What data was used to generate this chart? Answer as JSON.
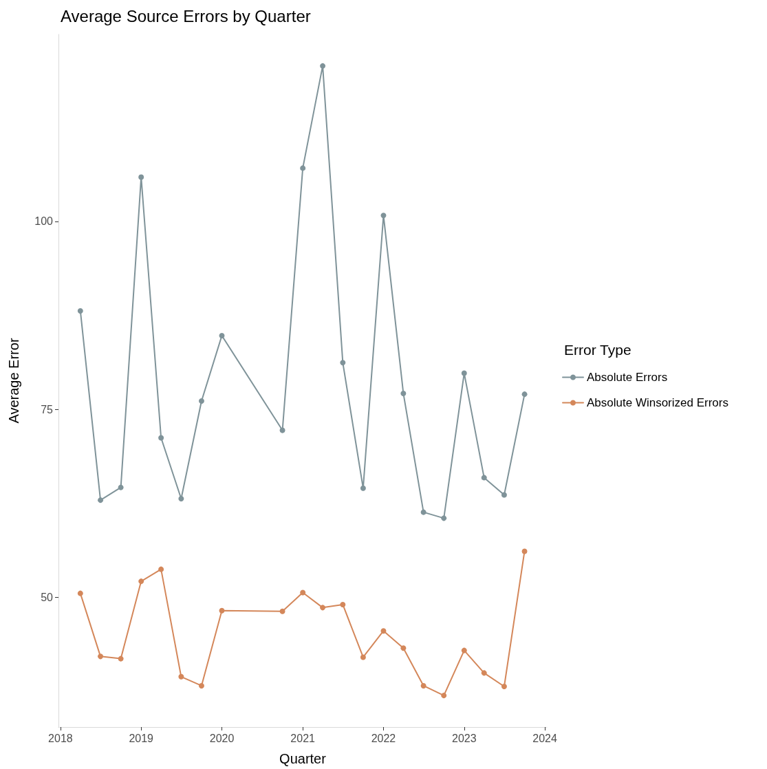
{
  "chart_data": {
    "type": "line",
    "title": "Average Source Errors by Quarter",
    "xlabel": "Quarter",
    "ylabel": "Average Error",
    "legend_title": "Error Type",
    "x": [
      "2018-04",
      "2018-07",
      "2018-10",
      "2019-01",
      "2019-04",
      "2019-07",
      "2019-10",
      "2020-01",
      "2020-10",
      "2021-01",
      "2021-04",
      "2021-07",
      "2021-10",
      "2022-01",
      "2022-04",
      "2022-07",
      "2022-10",
      "2023-01",
      "2023-04",
      "2023-07",
      "2023-10"
    ],
    "series": [
      {
        "name": "Absolute Errors",
        "color": "#7f9399",
        "values": [
          88.1,
          62.9,
          64.6,
          105.9,
          71.2,
          63.1,
          76.1,
          84.8,
          72.2,
          107.1,
          120.7,
          81.2,
          64.5,
          100.8,
          77.1,
          61.3,
          60.5,
          79.8,
          65.9,
          63.6,
          77.0
        ]
      },
      {
        "name": "Absolute Winsorized Errors",
        "color": "#d4875a",
        "values": [
          50.5,
          42.1,
          41.8,
          52.1,
          53.7,
          39.4,
          38.2,
          48.2,
          48.1,
          50.6,
          48.6,
          49.0,
          42.0,
          45.5,
          43.2,
          38.2,
          36.9,
          42.9,
          39.9,
          38.1,
          56.1
        ]
      }
    ],
    "xlim": [
      "2017-12-23",
      "2024-01-10"
    ],
    "xticks": [
      {
        "value": "2018",
        "label": "2018"
      },
      {
        "value": "2019",
        "label": "2019"
      },
      {
        "value": "2020",
        "label": "2020"
      },
      {
        "value": "2021",
        "label": "2021"
      },
      {
        "value": "2022",
        "label": "2022"
      },
      {
        "value": "2023",
        "label": "2023"
      },
      {
        "value": "2024",
        "label": "2024"
      }
    ],
    "ylim": [
      32.7,
      124.9
    ],
    "yticks": [
      50,
      75,
      100
    ],
    "grid": false,
    "legend": "right",
    "marker": "circle",
    "line_style": "solid"
  }
}
